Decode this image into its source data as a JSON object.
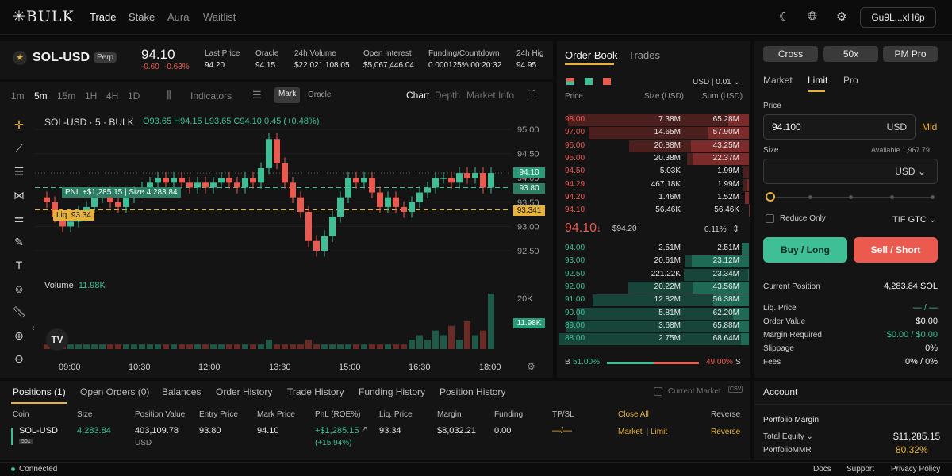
{
  "nav": {
    "logo": "✳BULK",
    "items": [
      {
        "label": "Trade"
      },
      {
        "label": "Stake"
      },
      {
        "label": "Aura"
      },
      {
        "label": "Waitlist"
      }
    ],
    "wallet": "Gu9L...xH6p"
  },
  "market": {
    "symbol": "SOL-USD",
    "badge": "Perp",
    "price": "94.10",
    "change": "-0.60",
    "change_pct": "-0.63%",
    "stats": [
      {
        "label": "Last Price",
        "value": "94.20"
      },
      {
        "label": "Oracle",
        "value": "94.15"
      },
      {
        "label": "24h Volume",
        "value": "$22,021,108.05"
      },
      {
        "label": "Open Interest",
        "value": "$5,067,446.04"
      },
      {
        "label": "Funding/Countdown",
        "value": "0.000125% 00:20:32"
      },
      {
        "label": "24h Hig",
        "value": "94.95"
      }
    ]
  },
  "chart_toolbar": {
    "intervals": [
      "1m",
      "5m",
      "15m",
      "1H",
      "4H",
      "1D"
    ],
    "indicators": "Indicators",
    "mark": "Mark",
    "oracle": "Oracle",
    "views": [
      "Chart",
      "Depth",
      "Market Info"
    ]
  },
  "chart_data": {
    "type": "candlestick",
    "title": "SOL-USD · 5 · BULK",
    "ohlc": {
      "o": "O93.65",
      "h": "H94.15",
      "l": "L93.65",
      "c": "C94.10",
      "chg": "0.45 (+0.48%)"
    },
    "price_ticks": [
      "95.00",
      "94.50",
      "94.00",
      "93.50",
      "93.00",
      "92.50"
    ],
    "volume_ticks": [
      "20K",
      "10K"
    ],
    "time_ticks": [
      "09:00",
      "10:30",
      "12:00",
      "13:30",
      "15:00",
      "16:30",
      "18:00"
    ],
    "volume_label": "Volume",
    "volume_value": "11.98K",
    "pnl_label": "PNL +$1,285.15 | Size 4,283.84",
    "liq_label": "Liq. 93.34",
    "tags": {
      "last": "94.10",
      "entry": "93.80",
      "liq": "93.341",
      "vol": "11.98K"
    },
    "closes": [
      93.5,
      93.2,
      93.0,
      93.1,
      93.3,
      93.4,
      93.6,
      93.7,
      93.5,
      93.4,
      93.6,
      93.7,
      93.8,
      93.9,
      94.0,
      93.9,
      94.0,
      93.9,
      93.8,
      93.9,
      93.8,
      93.9,
      94.0,
      93.9,
      93.8,
      94.0,
      93.9,
      94.2,
      94.8,
      94.3,
      93.9,
      93.6,
      93.3,
      92.7,
      92.5,
      92.8,
      93.2,
      93.6,
      94.0,
      93.9,
      94.0,
      93.7,
      93.4,
      93.6,
      93.4,
      93.3,
      93.5,
      93.7,
      93.8,
      94.0,
      94.0,
      93.9,
      94.1,
      94.0,
      94.1,
      93.8,
      94.1
    ],
    "volumes": [
      1,
      1,
      1,
      1,
      1,
      1,
      1,
      1,
      1,
      1,
      1,
      1,
      1,
      1,
      1,
      1,
      1,
      1,
      1,
      1,
      1,
      1,
      1,
      1,
      1,
      1,
      1,
      1,
      2,
      1,
      1,
      1,
      1,
      2,
      1,
      1,
      1,
      1,
      1,
      1,
      1,
      1,
      1,
      1,
      1,
      1,
      2,
      3,
      2,
      4,
      3,
      5,
      2,
      6,
      3,
      4,
      11.98
    ]
  },
  "orderbook": {
    "tabs": [
      "Order Book",
      "Trades"
    ],
    "unit": "USD | 0.01",
    "headers": [
      "Price",
      "Size (USD)",
      "Sum (USD)"
    ],
    "asks": [
      [
        "98.00",
        "7.38M",
        "65.28M"
      ],
      [
        "97.00",
        "14.65M",
        "57.90M"
      ],
      [
        "96.00",
        "20.88M",
        "43.25M"
      ],
      [
        "95.00",
        "20.38M",
        "22.37M"
      ],
      [
        "94.50",
        "5.03K",
        "1.99M"
      ],
      [
        "94.29",
        "467.18K",
        "1.99M"
      ],
      [
        "94.20",
        "1.46M",
        "1.52M"
      ],
      [
        "94.10",
        "56.46K",
        "56.46K"
      ]
    ],
    "mid": {
      "price": "94.10",
      "arrow": "↓",
      "mark": "$94.20",
      "spread": "0.11%"
    },
    "bids": [
      [
        "94.00",
        "2.51M",
        "2.51M"
      ],
      [
        "93.00",
        "20.61M",
        "23.12M"
      ],
      [
        "92.50",
        "221.22K",
        "23.34M"
      ],
      [
        "92.00",
        "20.22M",
        "43.56M"
      ],
      [
        "91.00",
        "12.82M",
        "56.38M"
      ],
      [
        "90.00",
        "5.81M",
        "62.20M"
      ],
      [
        "89.00",
        "3.68M",
        "65.88M"
      ],
      [
        "88.00",
        "2.75M",
        "68.64M"
      ]
    ],
    "ratio": {
      "b": "B",
      "bpct": "51.00%",
      "spct": "49.00%",
      "s": "S",
      "bid_fraction": 0.51
    }
  },
  "order_form": {
    "margin": [
      "Cross",
      "50x",
      "PM Pro"
    ],
    "types": [
      "Market",
      "Limit",
      "Pro"
    ],
    "price_label": "Price",
    "price": "94.100",
    "price_unit": "USD",
    "mid": "Mid",
    "size_label": "Size",
    "available": "Available  1,967.79",
    "size_unit": "USD",
    "reduce_only": "Reduce Only",
    "tif": "TIF",
    "tif_value": "GTC",
    "buy": "Buy / Long",
    "sell": "Sell / Short",
    "info": [
      [
        "Current Position",
        "4,283.84 SOL"
      ],
      [
        "Liq. Price",
        "— / —"
      ],
      [
        "Order Value",
        "$0.00"
      ],
      [
        "Margin Required",
        "$0.00 / $0.00"
      ],
      [
        "Slippage",
        "0%"
      ],
      [
        "Fees",
        "0% / 0%"
      ]
    ]
  },
  "account": {
    "title": "Account",
    "portfolio": "Portfolio Margin",
    "equity_label": "Total Equity",
    "equity": "$11,285.15",
    "mmr_label": "PortfolioMMR",
    "mmr": "80.32%"
  },
  "positions": {
    "tabs": [
      "Positions (1)",
      "Open Orders (0)",
      "Balances",
      "Order History",
      "Trade History",
      "Funding History",
      "Position History"
    ],
    "current_market": "Current Market",
    "csv": "CSV",
    "headers": [
      "Coin",
      "Size",
      "Position Value",
      "Entry Price",
      "Mark Price",
      "PnL (ROE%)",
      "Liq. Price",
      "Margin",
      "Funding",
      "TP/SL",
      "Close All",
      "Reverse"
    ],
    "row": {
      "coin": "SOL-USD",
      "lev": "50x",
      "size": "4,283.84",
      "value": "403,109.78",
      "value_unit": "USD",
      "entry": "93.80",
      "mark": "94.10",
      "pnl": "+$1,285.15",
      "roe": "(+15.94%)",
      "liq": "93.34",
      "margin": "$8,032.21",
      "funding": "0.00",
      "tpsl": "—/—",
      "market": "Market",
      "limit": "Limit",
      "reverse": "Reverse"
    }
  },
  "footer": {
    "status": "Connected",
    "links": [
      "Docs",
      "Support",
      "Privacy Policy"
    ]
  },
  "colors": {
    "green": "#3fbf95",
    "red": "#ec5a4f",
    "accent": "#e6b23a"
  }
}
